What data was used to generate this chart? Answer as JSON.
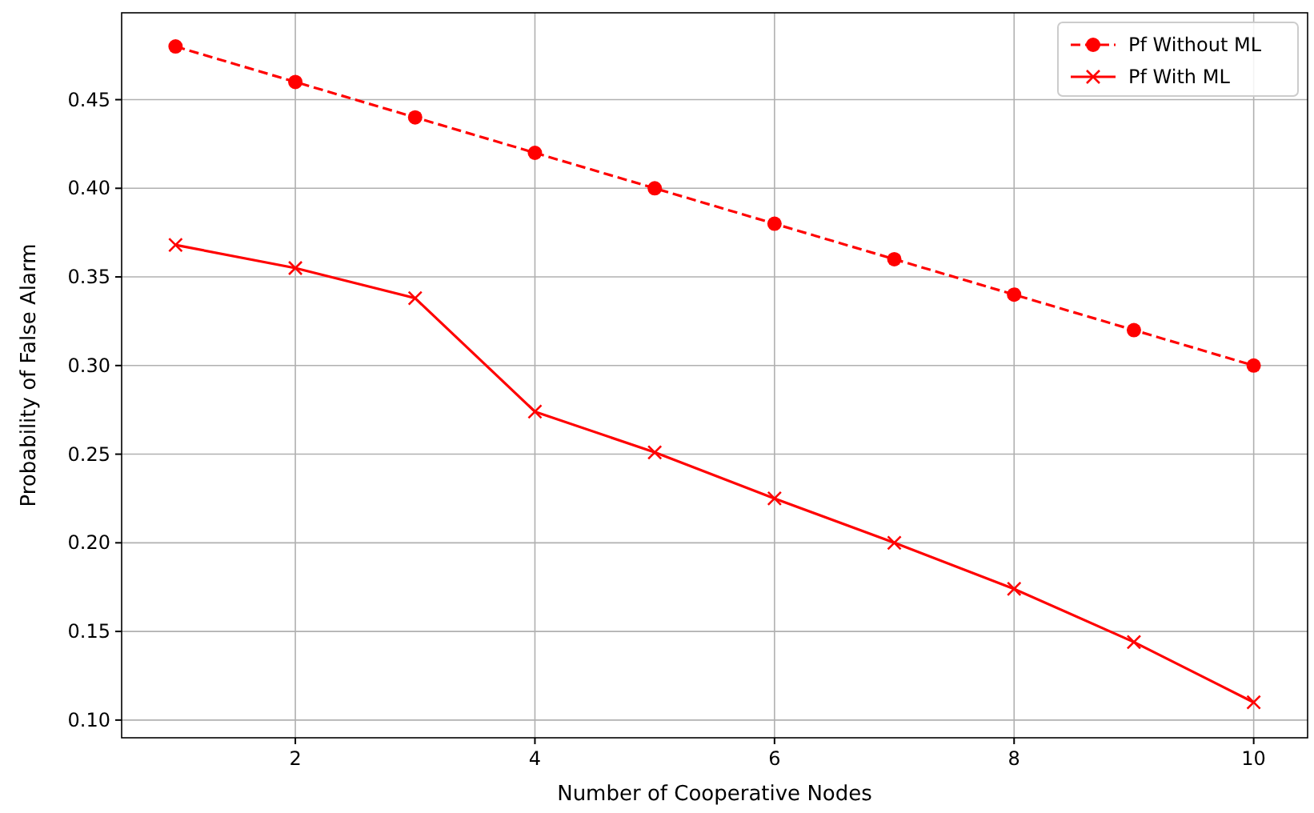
{
  "chart_data": {
    "type": "line",
    "xlabel": "Number of Cooperative Nodes",
    "ylabel": "Probability of False Alarm",
    "x": [
      1,
      2,
      3,
      4,
      5,
      6,
      7,
      8,
      9,
      10
    ],
    "series": [
      {
        "name": "Pf Without ML",
        "color": "#ff0000",
        "marker": "circle",
        "line_style": "dashed",
        "values": [
          0.48,
          0.46,
          0.44,
          0.42,
          0.4,
          0.38,
          0.36,
          0.34,
          0.32,
          0.3
        ]
      },
      {
        "name": "Pf With ML",
        "color": "#ff0000",
        "marker": "cross",
        "line_style": "solid",
        "values": [
          0.368,
          0.355,
          0.338,
          0.274,
          0.251,
          0.225,
          0.2,
          0.174,
          0.144,
          0.11
        ]
      }
    ],
    "xlim": [
      0.55,
      10.45
    ],
    "xticks": [
      2,
      4,
      6,
      8,
      10
    ],
    "ylim": [
      0.09,
      0.499
    ],
    "yticks": [
      {
        "value": 0.1,
        "label": "0.10"
      },
      {
        "value": 0.15,
        "label": "0.15"
      },
      {
        "value": 0.2,
        "label": "0.20"
      },
      {
        "value": 0.25,
        "label": "0.25"
      },
      {
        "value": 0.3,
        "label": "0.30"
      },
      {
        "value": 0.35,
        "label": "0.35"
      },
      {
        "value": 0.4,
        "label": "0.40"
      },
      {
        "value": 0.45,
        "label": "0.45"
      }
    ],
    "grid": true,
    "legend": "top right"
  }
}
